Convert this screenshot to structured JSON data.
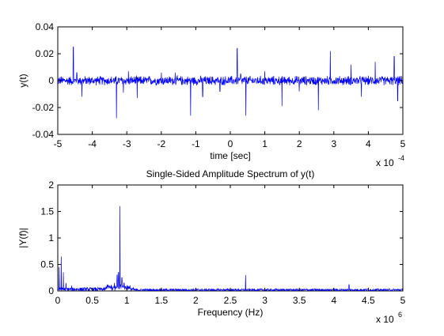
{
  "chart_data": [
    {
      "type": "line",
      "title": "",
      "xlabel": "time [sec]",
      "ylabel": "y(t)",
      "x_multiplier": {
        "base": "x 10",
        "exponent": "-4"
      },
      "xlim": [
        -5,
        5
      ],
      "ylim": [
        -0.04,
        0.04
      ],
      "xticks": [
        "-5",
        "-4",
        "-3",
        "-2",
        "-1",
        "0",
        "1",
        "2",
        "3",
        "4",
        "5"
      ],
      "yticks": [
        "-0.04",
        "-0.02",
        "0",
        "0.02",
        "0.04"
      ],
      "grid": false,
      "line_color": "#0000ff",
      "noise_amplitude": 0.004,
      "spikes": [
        {
          "x": -4.55,
          "y": 0.025
        },
        {
          "x": -4.45,
          "y": 0.006
        },
        {
          "x": -4.3,
          "y": -0.012
        },
        {
          "x": -3.3,
          "y": -0.028
        },
        {
          "x": -3.1,
          "y": -0.009
        },
        {
          "x": -2.95,
          "y": 0.007
        },
        {
          "x": -2.7,
          "y": -0.013
        },
        {
          "x": -2.0,
          "y": 0.006
        },
        {
          "x": -1.6,
          "y": 0.006
        },
        {
          "x": -1.15,
          "y": -0.026
        },
        {
          "x": -0.8,
          "y": -0.012
        },
        {
          "x": -0.3,
          "y": -0.008
        },
        {
          "x": 0.2,
          "y": 0.024
        },
        {
          "x": 0.3,
          "y": 0.005
        },
        {
          "x": 0.45,
          "y": -0.026
        },
        {
          "x": 1.0,
          "y": 0.007
        },
        {
          "x": 1.5,
          "y": -0.019
        },
        {
          "x": 2.0,
          "y": -0.008
        },
        {
          "x": 2.55,
          "y": -0.022
        },
        {
          "x": 2.9,
          "y": 0.022
        },
        {
          "x": 3.5,
          "y": 0.012
        },
        {
          "x": 3.8,
          "y": -0.012
        },
        {
          "x": 4.2,
          "y": 0.014
        },
        {
          "x": 4.75,
          "y": 0.018
        },
        {
          "x": 4.85,
          "y": -0.015
        }
      ]
    },
    {
      "type": "line",
      "title": "Single-Sided Amplitude Spectrum of y(t)",
      "xlabel": "Frequency (Hz)",
      "ylabel": "|Y(f)|",
      "x_multiplier": {
        "base": "x 10",
        "exponent": "6"
      },
      "xlim": [
        0,
        5
      ],
      "ylim": [
        0,
        2
      ],
      "xticks": [
        "0",
        "0.5",
        "1",
        "1.5",
        "2",
        "2.5",
        "3",
        "3.5",
        "4",
        "4.5",
        "5"
      ],
      "yticks": [
        "0",
        "0.5",
        "1",
        "1.5",
        "2"
      ],
      "grid": false,
      "line_color": "#0000ff",
      "noise_floor": 0.04,
      "spikes": [
        {
          "x": 0.02,
          "y": 0.45
        },
        {
          "x": 0.05,
          "y": 0.65
        },
        {
          "x": 0.08,
          "y": 0.35
        },
        {
          "x": 0.12,
          "y": 0.15
        },
        {
          "x": 0.2,
          "y": 0.1
        },
        {
          "x": 0.82,
          "y": 0.15
        },
        {
          "x": 0.86,
          "y": 0.3
        },
        {
          "x": 0.88,
          "y": 0.35
        },
        {
          "x": 0.9,
          "y": 1.6
        },
        {
          "x": 0.93,
          "y": 0.25
        },
        {
          "x": 0.96,
          "y": 0.15
        },
        {
          "x": 2.72,
          "y": 0.3
        },
        {
          "x": 4.22,
          "y": 0.12
        }
      ]
    }
  ]
}
